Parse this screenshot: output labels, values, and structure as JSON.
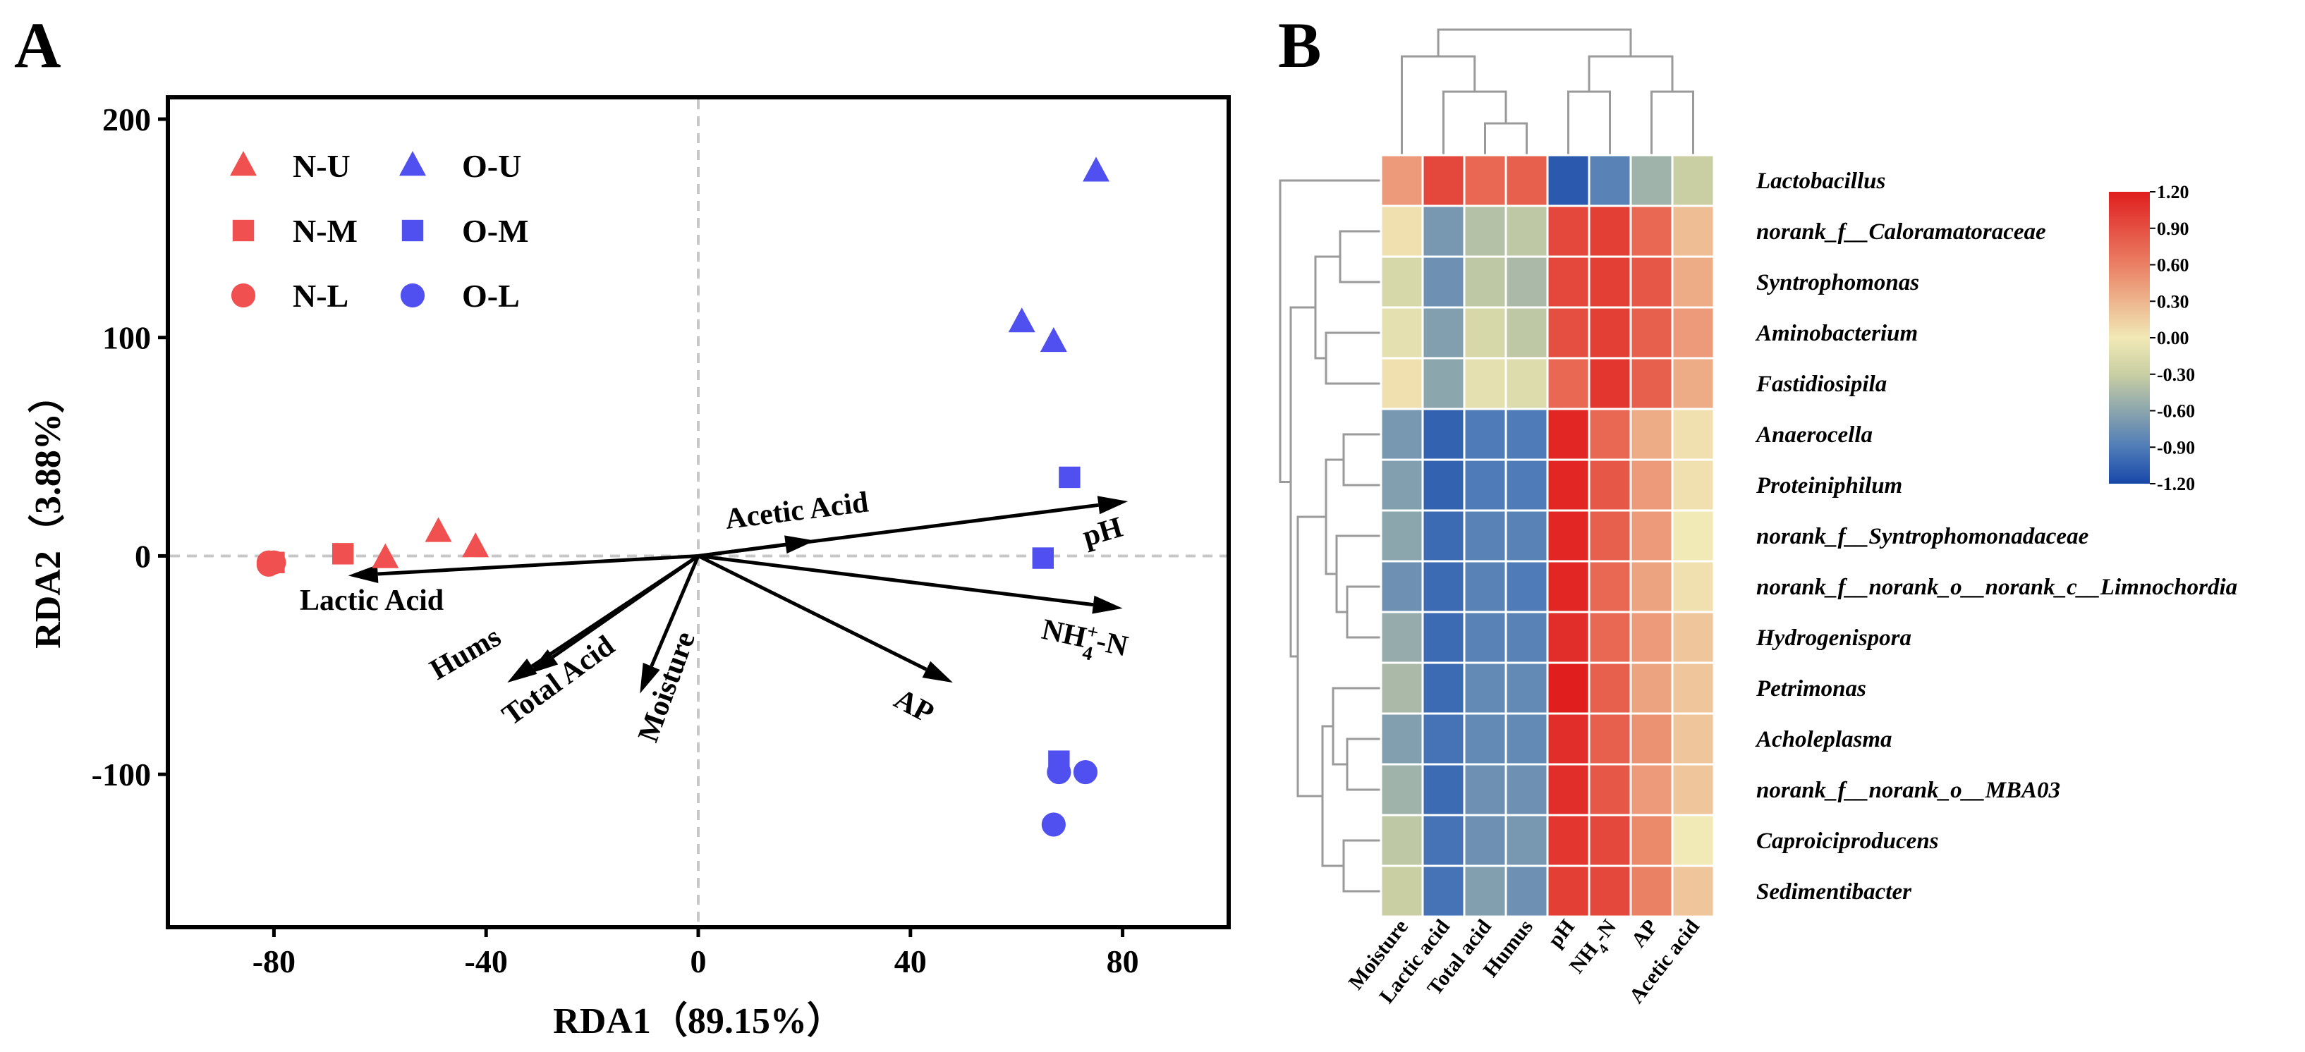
{
  "chart_data": [
    {
      "panel": "A",
      "type": "scatter",
      "xlabel": "RDA1（89.15%）",
      "ylabel": "RDA2（3.88%）",
      "xlim": [
        -100,
        100
      ],
      "ylim": [
        -170,
        210
      ],
      "xticks": [
        -80,
        -40,
        0,
        40,
        80
      ],
      "yticks": [
        -100,
        0,
        100,
        200
      ],
      "ytick_labels": [
        "-100",
        "0",
        "100",
        "200"
      ],
      "legend": {
        "placement": "top-left",
        "entries": [
          {
            "name": "N-U",
            "marker": "triangle",
            "color": "#f05050"
          },
          {
            "name": "O-U",
            "marker": "triangle",
            "color": "#5050f0"
          },
          {
            "name": "N-M",
            "marker": "square",
            "color": "#f05050"
          },
          {
            "name": "O-M",
            "marker": "square",
            "color": "#5050f0"
          },
          {
            "name": "N-L",
            "marker": "circle",
            "color": "#f05050"
          },
          {
            "name": "O-L",
            "marker": "circle",
            "color": "#5050f0"
          }
        ]
      },
      "series": [
        {
          "name": "N-U",
          "marker": "triangle",
          "color": "#f05050",
          "points": [
            [
              -49,
              11
            ],
            [
              -42,
              4
            ],
            [
              -59,
              -1
            ]
          ]
        },
        {
          "name": "N-M",
          "marker": "square",
          "color": "#f05050",
          "points": [
            [
              -67,
              1
            ],
            [
              -80,
              -3
            ],
            [
              -80,
              -3
            ]
          ]
        },
        {
          "name": "N-L",
          "marker": "circle",
          "color": "#f05050",
          "points": [
            [
              -81,
              -3
            ],
            [
              -80,
              -3
            ],
            [
              -81,
              -4
            ]
          ]
        },
        {
          "name": "O-U",
          "marker": "triangle",
          "color": "#5050f0",
          "points": [
            [
              75,
              176
            ],
            [
              61,
              107
            ],
            [
              67,
              98
            ]
          ]
        },
        {
          "name": "O-M",
          "marker": "square",
          "color": "#5050f0",
          "points": [
            [
              70,
              36
            ],
            [
              65,
              -1
            ],
            [
              68,
              -94
            ]
          ]
        },
        {
          "name": "O-L",
          "marker": "circle",
          "color": "#5050f0",
          "points": [
            [
              68,
              -99
            ],
            [
              73,
              -99
            ],
            [
              67,
              -123
            ]
          ]
        }
      ],
      "vectors": [
        {
          "name": "Acetic Acid",
          "x": 22,
          "y": 7
        },
        {
          "name": "pH",
          "x": 81,
          "y": 25
        },
        {
          "name": "NH4+-N",
          "x": 80,
          "y": -24
        },
        {
          "name": "AP",
          "x": 48,
          "y": -58
        },
        {
          "name": "Moisture",
          "x": -11,
          "y": -63
        },
        {
          "name": "Total Acid",
          "x": -32,
          "y": -54
        },
        {
          "name": "Hums",
          "x": -36,
          "y": -58
        },
        {
          "name": "Lactic Acid",
          "x": -66,
          "y": -9
        }
      ]
    },
    {
      "panel": "B",
      "type": "heatmap",
      "columns": [
        "Moisture",
        "Lactic acid",
        "Total acid",
        "Humus",
        "pH",
        "NH4-N",
        "AP",
        "Acetic acid"
      ],
      "rows": [
        "Lactobacillus",
        "norank_f__Caloramatoraceae",
        "Syntrophomonas",
        "Aminobacterium",
        "Fastidiosipila",
        "Anaerocella",
        "Proteiniphilum",
        "norank_f__Syntrophomonadaceae",
        "norank_f__norank_o__norank_c__Limnochordia",
        "Hydrogenispora",
        "Petrimonas",
        "Acholeplasma",
        "norank_f__norank_o__MBA03",
        "Caproiciproducens",
        "Sedimentibacter"
      ],
      "values": [
        [
          0.45,
          0.95,
          0.75,
          0.8,
          -1.1,
          -0.85,
          -0.5,
          -0.3
        ],
        [
          0.05,
          -0.7,
          -0.4,
          -0.35,
          0.95,
          1.0,
          0.75,
          0.25
        ],
        [
          -0.2,
          -0.75,
          -0.35,
          -0.45,
          0.95,
          1.0,
          0.85,
          0.35
        ],
        [
          -0.1,
          -0.65,
          -0.2,
          -0.35,
          0.9,
          1.0,
          0.8,
          0.45
        ],
        [
          0.05,
          -0.6,
          -0.1,
          -0.15,
          0.75,
          1.05,
          0.8,
          0.35
        ],
        [
          -0.7,
          -1.05,
          -0.9,
          -0.9,
          1.15,
          0.75,
          0.35,
          0.05
        ],
        [
          -0.65,
          -1.05,
          -0.9,
          -0.9,
          1.15,
          0.85,
          0.45,
          0.05
        ],
        [
          -0.6,
          -1.0,
          -0.85,
          -0.85,
          1.15,
          0.8,
          0.45,
          0.0
        ],
        [
          -0.75,
          -1.0,
          -0.85,
          -0.9,
          1.15,
          0.75,
          0.4,
          0.05
        ],
        [
          -0.55,
          -1.0,
          -0.85,
          -0.85,
          1.1,
          0.75,
          0.45,
          0.2
        ],
        [
          -0.45,
          -1.0,
          -0.8,
          -0.8,
          1.2,
          0.8,
          0.4,
          0.2
        ],
        [
          -0.65,
          -0.95,
          -0.8,
          -0.8,
          1.1,
          0.8,
          0.5,
          0.2
        ],
        [
          -0.5,
          -1.0,
          -0.75,
          -0.75,
          1.1,
          0.85,
          0.45,
          0.2
        ],
        [
          -0.35,
          -0.95,
          -0.75,
          -0.7,
          1.05,
          0.95,
          0.55,
          0.0
        ],
        [
          -0.3,
          -0.95,
          -0.65,
          -0.75,
          1.0,
          0.95,
          0.6,
          0.2
        ]
      ],
      "colorbar": {
        "range": [
          -1.2,
          1.2
        ],
        "ticks": [
          "1.20",
          "0.90",
          "0.60",
          "0.30",
          "0.00",
          "-0.30",
          "-0.60",
          "-0.90",
          "-1.20"
        ],
        "colors": [
          "#1747a8",
          "#4f7cb8",
          "#c9cfa3",
          "#f1e9b6",
          "#ea8064",
          "#e01e1e"
        ]
      },
      "column_order_note": "columns clustered as (Moisture,(Lactic acid,(Total acid,Humus))) and ((pH,NH4-N),(AP,Acetic acid))"
    }
  ],
  "panel_labels": {
    "a": "A",
    "b": "B"
  },
  "vector_labels": {
    "acetic": "Acetic Acid",
    "ph": "pH",
    "nh4_base": "NH",
    "nh4_sub": "4",
    "nh4_sup": "+",
    "nh4_tail": "-N",
    "ap": "AP",
    "moisture": "Moisture",
    "total_acid": "Total Acid",
    "hums": "Hums",
    "lactic": "Lactic Acid"
  },
  "col_label_parts": {
    "nh4_base": "NH",
    "nh4_sub": "4",
    "nh4_tail": "-N"
  }
}
